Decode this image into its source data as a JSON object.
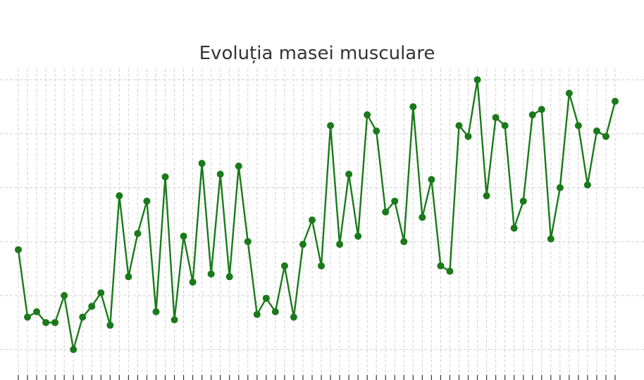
{
  "chart_data": {
    "type": "line",
    "title": "Evoluția masei musculare",
    "xlabel": "",
    "ylabel": "",
    "x": [
      1,
      2,
      3,
      4,
      5,
      6,
      7,
      8,
      9,
      10,
      11,
      12,
      13,
      14,
      15,
      16,
      17,
      18,
      19,
      20,
      21,
      22,
      23,
      24,
      25,
      26,
      27,
      28,
      29,
      30,
      31,
      32,
      33,
      34,
      35,
      36,
      37,
      38,
      39,
      40,
      41,
      42,
      43,
      44,
      45,
      46,
      47,
      48,
      49,
      50,
      51,
      52,
      53,
      54,
      55,
      56,
      57,
      58,
      59,
      60,
      61,
      62,
      63,
      64,
      65,
      66
    ],
    "ylim": [
      0,
      11.4
    ],
    "grid": true,
    "series": [
      {
        "name": "",
        "color": "#1a7a1a",
        "values": [
          4.7,
          2.2,
          2.4,
          2.0,
          2.0,
          3.0,
          1.0,
          2.2,
          2.6,
          3.1,
          1.9,
          6.7,
          3.7,
          5.3,
          6.5,
          2.4,
          7.4,
          2.1,
          5.2,
          3.5,
          7.9,
          3.8,
          7.5,
          3.7,
          7.8,
          5.0,
          2.3,
          2.9,
          2.4,
          4.1,
          2.2,
          4.9,
          5.8,
          4.1,
          9.3,
          4.9,
          7.5,
          5.2,
          9.7,
          9.1,
          6.1,
          6.5,
          5.0,
          10.0,
          5.9,
          7.3,
          4.1,
          3.9,
          9.3,
          8.9,
          11.0,
          6.7,
          9.6,
          9.3,
          5.5,
          6.5,
          9.7,
          9.9,
          5.1,
          7.0,
          10.5,
          9.3,
          7.1,
          9.1,
          8.9,
          10.2
        ]
      }
    ]
  }
}
